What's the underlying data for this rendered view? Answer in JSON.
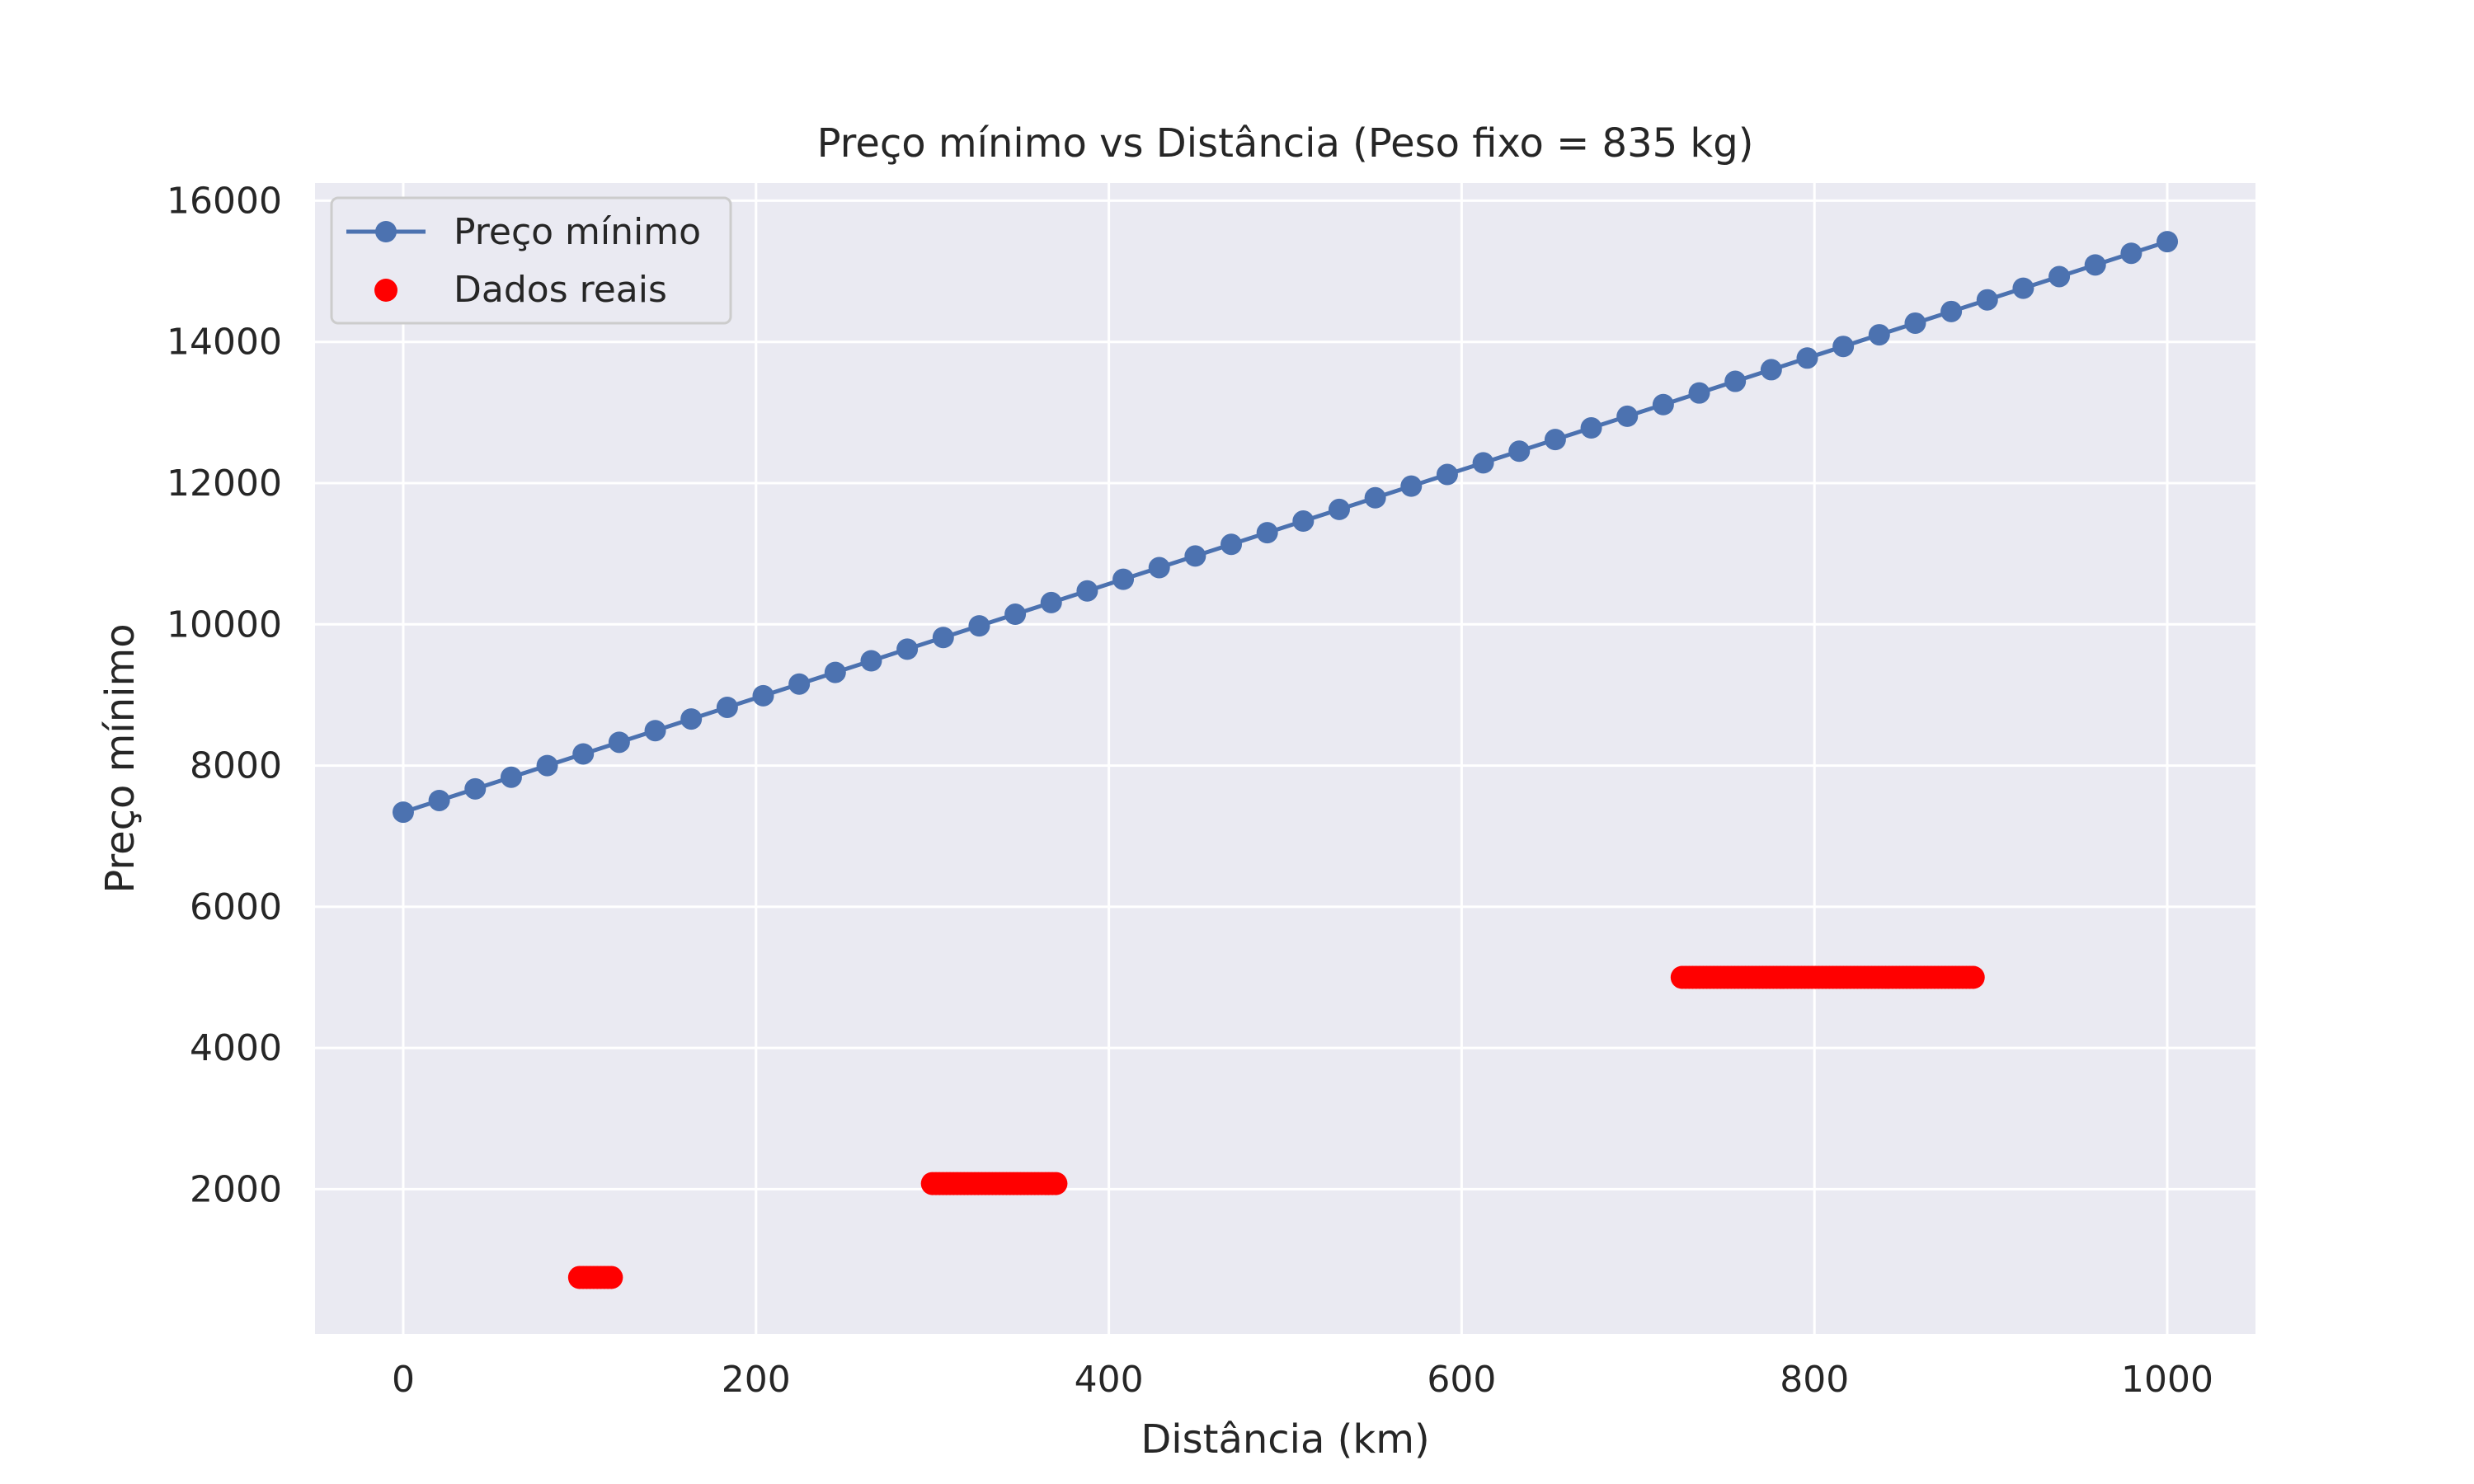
{
  "chart_data": {
    "type": "line",
    "title": "Preço mínimo vs Distância (Peso fixo = 835 kg)",
    "xlabel": "Distância (km)",
    "ylabel": "Preço mínimo",
    "xlim": [
      -50,
      1050
    ],
    "ylim": [
      -50,
      16250
    ],
    "xticks": [
      0,
      200,
      400,
      600,
      800,
      1000
    ],
    "yticks": [
      2000,
      4000,
      6000,
      8000,
      10000,
      12000,
      14000,
      16000
    ],
    "grid": true,
    "legend_position": "top-left",
    "background_color": "#eaeaf2",
    "series": [
      {
        "name": "Preço mínimo",
        "kind": "line-with-markers",
        "color": "#4c72b0",
        "x_start": 0,
        "x_end": 1000,
        "points": 50,
        "y_start": 7340,
        "y_end": 15420
      },
      {
        "name": "Dados reais",
        "kind": "scatter",
        "color": "#ff0000",
        "clusters": [
          {
            "x_from": 100,
            "x_to": 118,
            "y": 750
          },
          {
            "x_from": 300,
            "x_to": 370,
            "y": 2080
          },
          {
            "x_from": 725,
            "x_to": 890,
            "y": 5000
          }
        ]
      }
    ]
  }
}
